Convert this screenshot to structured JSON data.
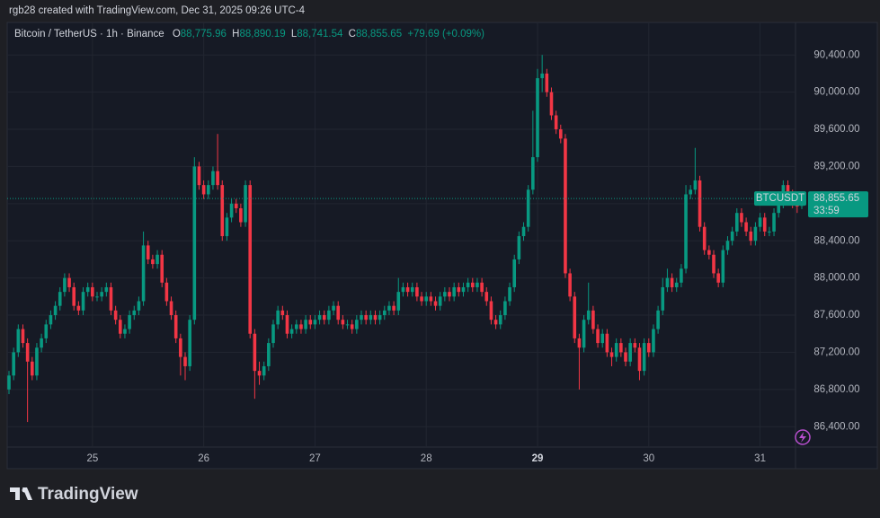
{
  "chart_data": {
    "type": "candlestick",
    "credit": "rgb28 created with TradingView.com, Dec 31, 2025 09:26 UTC-4",
    "symbol": "Bitcoin / TetherUS · 1h · Binance",
    "ohlc_header": {
      "open_label": "O",
      "open": "88,775.96",
      "high_label": "H",
      "high": "88,890.19",
      "low_label": "L",
      "low": "88,741.54",
      "close_label": "C",
      "close": "88,855.65",
      "change": "+79.69 (+0.09%)"
    },
    "price_tag": {
      "symbol": "BTCUSDT",
      "price": "88,855.65",
      "countdown": "33:59"
    },
    "brand": "TradingView",
    "up_color": "#089981",
    "down_color": "#f23645",
    "grid": true,
    "xlim": [
      0,
      171
    ],
    "ylim": [
      86180,
      90750
    ],
    "xticks": [
      {
        "value": 18,
        "label": "25"
      },
      {
        "value": 42,
        "label": "26"
      },
      {
        "value": 66,
        "label": "27"
      },
      {
        "value": 90,
        "label": "28"
      },
      {
        "value": 114,
        "label": "29"
      },
      {
        "value": 138,
        "label": "30"
      },
      {
        "value": 162,
        "label": "31"
      }
    ],
    "yticks": [
      {
        "value": 86400,
        "label": "86,400.00"
      },
      {
        "value": 86800,
        "label": "86,800.00"
      },
      {
        "value": 87200,
        "label": "87,200.00"
      },
      {
        "value": 87600,
        "label": "87,600.00"
      },
      {
        "value": 88000,
        "label": "88,000.00"
      },
      {
        "value": 88400,
        "label": "88,400.00"
      },
      {
        "value": 88800,
        "label": "88,800.00"
      },
      {
        "value": 89200,
        "label": "89,200.00"
      },
      {
        "value": 89600,
        "label": "89,600.00"
      },
      {
        "value": 90000,
        "label": "90,000.00"
      },
      {
        "value": 90400,
        "label": "90,400.00"
      }
    ],
    "ohlc": [
      [
        86800,
        87000,
        86750,
        86950
      ],
      [
        86950,
        87250,
        86900,
        87200
      ],
      [
        87200,
        87500,
        87150,
        87450
      ],
      [
        87450,
        87500,
        87250,
        87300
      ],
      [
        87300,
        87350,
        86450,
        87100
      ],
      [
        87100,
        87150,
        86900,
        86950
      ],
      [
        86950,
        87300,
        86900,
        87250
      ],
      [
        87250,
        87400,
        87200,
        87350
      ],
      [
        87350,
        87550,
        87300,
        87500
      ],
      [
        87500,
        87650,
        87450,
        87600
      ],
      [
        87600,
        87750,
        87550,
        87700
      ],
      [
        87700,
        87900,
        87650,
        87850
      ],
      [
        87850,
        88050,
        87800,
        88000
      ],
      [
        88000,
        88050,
        87850,
        87900
      ],
      [
        87900,
        87950,
        87650,
        87700
      ],
      [
        87700,
        87750,
        87600,
        87650
      ],
      [
        87650,
        87900,
        87600,
        87850
      ],
      [
        87850,
        87950,
        87800,
        87900
      ],
      [
        87900,
        87950,
        87750,
        87800
      ],
      [
        87800,
        87850,
        87750,
        87800
      ],
      [
        87800,
        87900,
        87750,
        87850
      ],
      [
        87850,
        87950,
        87800,
        87900
      ],
      [
        87900,
        87950,
        87600,
        87650
      ],
      [
        87650,
        87700,
        87500,
        87550
      ],
      [
        87550,
        87600,
        87350,
        87400
      ],
      [
        87400,
        87500,
        87350,
        87450
      ],
      [
        87450,
        87650,
        87400,
        87600
      ],
      [
        87600,
        87700,
        87550,
        87650
      ],
      [
        87650,
        87800,
        87600,
        87750
      ],
      [
        87750,
        88500,
        87700,
        88350
      ],
      [
        88350,
        88400,
        88150,
        88200
      ],
      [
        88200,
        88250,
        88100,
        88150
      ],
      [
        88150,
        88300,
        88100,
        88250
      ],
      [
        88250,
        88300,
        87900,
        87950
      ],
      [
        87950,
        88000,
        87700,
        87750
      ],
      [
        87750,
        87800,
        87550,
        87600
      ],
      [
        87600,
        87650,
        87300,
        87350
      ],
      [
        87350,
        87400,
        86950,
        87150
      ],
      [
        87150,
        87200,
        86900,
        87050
      ],
      [
        87050,
        87600,
        87000,
        87550
      ],
      [
        87550,
        89300,
        87500,
        89200
      ],
      [
        89200,
        89250,
        88950,
        89000
      ],
      [
        89000,
        89050,
        88850,
        88900
      ],
      [
        88900,
        89050,
        88850,
        89000
      ],
      [
        89000,
        89200,
        88950,
        89150
      ],
      [
        89150,
        89550,
        88950,
        89000
      ],
      [
        89000,
        89050,
        88400,
        88450
      ],
      [
        88450,
        88700,
        88400,
        88650
      ],
      [
        88650,
        88850,
        88600,
        88800
      ],
      [
        88800,
        88850,
        88700,
        88750
      ],
      [
        88750,
        88800,
        88550,
        88600
      ],
      [
        88600,
        89050,
        88550,
        89000
      ],
      [
        89000,
        89050,
        87350,
        87400
      ],
      [
        87400,
        87450,
        86700,
        87000
      ],
      [
        87000,
        87100,
        86850,
        86950
      ],
      [
        86950,
        87100,
        86900,
        87050
      ],
      [
        87050,
        87350,
        87000,
        87300
      ],
      [
        87300,
        87550,
        87250,
        87500
      ],
      [
        87500,
        87700,
        87450,
        87650
      ],
      [
        87650,
        87700,
        87550,
        87600
      ],
      [
        87600,
        87650,
        87350,
        87400
      ],
      [
        87400,
        87500,
        87350,
        87450
      ],
      [
        87450,
        87550,
        87400,
        87500
      ],
      [
        87500,
        87550,
        87400,
        87450
      ],
      [
        87450,
        87600,
        87400,
        87550
      ],
      [
        87550,
        87600,
        87450,
        87500
      ],
      [
        87500,
        87600,
        87450,
        87550
      ],
      [
        87550,
        87650,
        87500,
        87600
      ],
      [
        87600,
        87650,
        87500,
        87550
      ],
      [
        87550,
        87700,
        87500,
        87650
      ],
      [
        87650,
        87750,
        87600,
        87700
      ],
      [
        87700,
        87750,
        87500,
        87550
      ],
      [
        87550,
        87600,
        87450,
        87500
      ],
      [
        87500,
        87550,
        87450,
        87500
      ],
      [
        87500,
        87550,
        87400,
        87450
      ],
      [
        87450,
        87600,
        87400,
        87550
      ],
      [
        87550,
        87650,
        87500,
        87600
      ],
      [
        87600,
        87650,
        87500,
        87550
      ],
      [
        87550,
        87650,
        87500,
        87600
      ],
      [
        87600,
        87650,
        87500,
        87550
      ],
      [
        87550,
        87650,
        87500,
        87600
      ],
      [
        87600,
        87700,
        87550,
        87650
      ],
      [
        87650,
        87750,
        87600,
        87700
      ],
      [
        87700,
        87750,
        87600,
        87650
      ],
      [
        87650,
        88000,
        87600,
        87850
      ],
      [
        87850,
        87950,
        87800,
        87900
      ],
      [
        87900,
        87950,
        87800,
        87850
      ],
      [
        87850,
        87950,
        87800,
        87900
      ],
      [
        87900,
        87950,
        87750,
        87800
      ],
      [
        87800,
        87850,
        87700,
        87750
      ],
      [
        87750,
        87850,
        87700,
        87800
      ],
      [
        87800,
        87850,
        87700,
        87750
      ],
      [
        87750,
        87800,
        87650,
        87700
      ],
      [
        87700,
        87850,
        87650,
        87800
      ],
      [
        87800,
        87900,
        87750,
        87850
      ],
      [
        87850,
        87900,
        87750,
        87800
      ],
      [
        87800,
        87950,
        87750,
        87900
      ],
      [
        87900,
        87950,
        87800,
        87850
      ],
      [
        87850,
        87950,
        87800,
        87900
      ],
      [
        87900,
        88000,
        87850,
        87950
      ],
      [
        87950,
        88000,
        87850,
        87900
      ],
      [
        87900,
        88000,
        87850,
        87950
      ],
      [
        87950,
        88000,
        87800,
        87850
      ],
      [
        87850,
        87900,
        87700,
        87750
      ],
      [
        87750,
        87800,
        87500,
        87550
      ],
      [
        87550,
        87600,
        87450,
        87500
      ],
      [
        87500,
        87650,
        87450,
        87600
      ],
      [
        87600,
        87800,
        87550,
        87750
      ],
      [
        87750,
        87950,
        87700,
        87900
      ],
      [
        87900,
        88250,
        87850,
        88200
      ],
      [
        88200,
        88500,
        88150,
        88450
      ],
      [
        88450,
        88600,
        88400,
        88550
      ],
      [
        88550,
        89000,
        88500,
        88950
      ],
      [
        88950,
        89800,
        88900,
        89300
      ],
      [
        89300,
        90250,
        89250,
        90150
      ],
      [
        90150,
        90400,
        90000,
        90200
      ],
      [
        90200,
        90250,
        89950,
        90000
      ],
      [
        90000,
        90050,
        89700,
        89750
      ],
      [
        89750,
        89800,
        89550,
        89600
      ],
      [
        89600,
        89650,
        89450,
        89500
      ],
      [
        89500,
        89550,
        88000,
        88050
      ],
      [
        88050,
        88100,
        87750,
        87800
      ],
      [
        87800,
        87850,
        87300,
        87350
      ],
      [
        87350,
        87400,
        86800,
        87250
      ],
      [
        87250,
        87600,
        87200,
        87550
      ],
      [
        87550,
        87950,
        87500,
        87650
      ],
      [
        87650,
        87700,
        87400,
        87450
      ],
      [
        87450,
        87500,
        87250,
        87300
      ],
      [
        87300,
        87450,
        87250,
        87400
      ],
      [
        87400,
        87450,
        87150,
        87200
      ],
      [
        87200,
        87250,
        87050,
        87150
      ],
      [
        87150,
        87350,
        87100,
        87300
      ],
      [
        87300,
        87350,
        87150,
        87200
      ],
      [
        87200,
        87250,
        87050,
        87100
      ],
      [
        87100,
        87350,
        87050,
        87300
      ],
      [
        87300,
        87350,
        87200,
        87250
      ],
      [
        87250,
        87300,
        86900,
        87000
      ],
      [
        87000,
        87350,
        86950,
        87300
      ],
      [
        87300,
        87350,
        87150,
        87200
      ],
      [
        87200,
        87500,
        87150,
        87450
      ],
      [
        87450,
        87700,
        87400,
        87650
      ],
      [
        87650,
        88000,
        87600,
        87900
      ],
      [
        87900,
        88100,
        87850,
        88000
      ],
      [
        88000,
        88050,
        87850,
        87900
      ],
      [
        87900,
        88000,
        87850,
        87950
      ],
      [
        87950,
        88150,
        87900,
        88100
      ],
      [
        88100,
        89000,
        88050,
        88900
      ],
      [
        88900,
        89000,
        88850,
        88950
      ],
      [
        88950,
        89400,
        88900,
        89050
      ],
      [
        89050,
        89100,
        88500,
        88550
      ],
      [
        88550,
        88600,
        88250,
        88300
      ],
      [
        88300,
        88350,
        88200,
        88250
      ],
      [
        88250,
        88300,
        88000,
        88050
      ],
      [
        88050,
        88100,
        87900,
        87950
      ],
      [
        87950,
        88350,
        87900,
        88300
      ],
      [
        88300,
        88450,
        88250,
        88400
      ],
      [
        88400,
        88550,
        88350,
        88500
      ],
      [
        88500,
        88750,
        88450,
        88700
      ],
      [
        88700,
        88750,
        88550,
        88600
      ],
      [
        88600,
        88650,
        88450,
        88500
      ],
      [
        88500,
        88550,
        88350,
        88400
      ],
      [
        88400,
        88600,
        88350,
        88550
      ],
      [
        88550,
        88700,
        88500,
        88650
      ],
      [
        88650,
        88700,
        88450,
        88500
      ],
      [
        88500,
        88550,
        88450,
        88500
      ],
      [
        88500,
        88750,
        88450,
        88700
      ],
      [
        88700,
        88850,
        88650,
        88800
      ],
      [
        88800,
        89050,
        88750,
        89000
      ],
      [
        89000,
        89050,
        88850,
        88900
      ],
      [
        88900,
        88950,
        88750,
        88780
      ],
      [
        88780,
        88850,
        88700,
        88775.96
      ],
      [
        88775.96,
        88890.19,
        88741.54,
        88855.65
      ]
    ]
  }
}
